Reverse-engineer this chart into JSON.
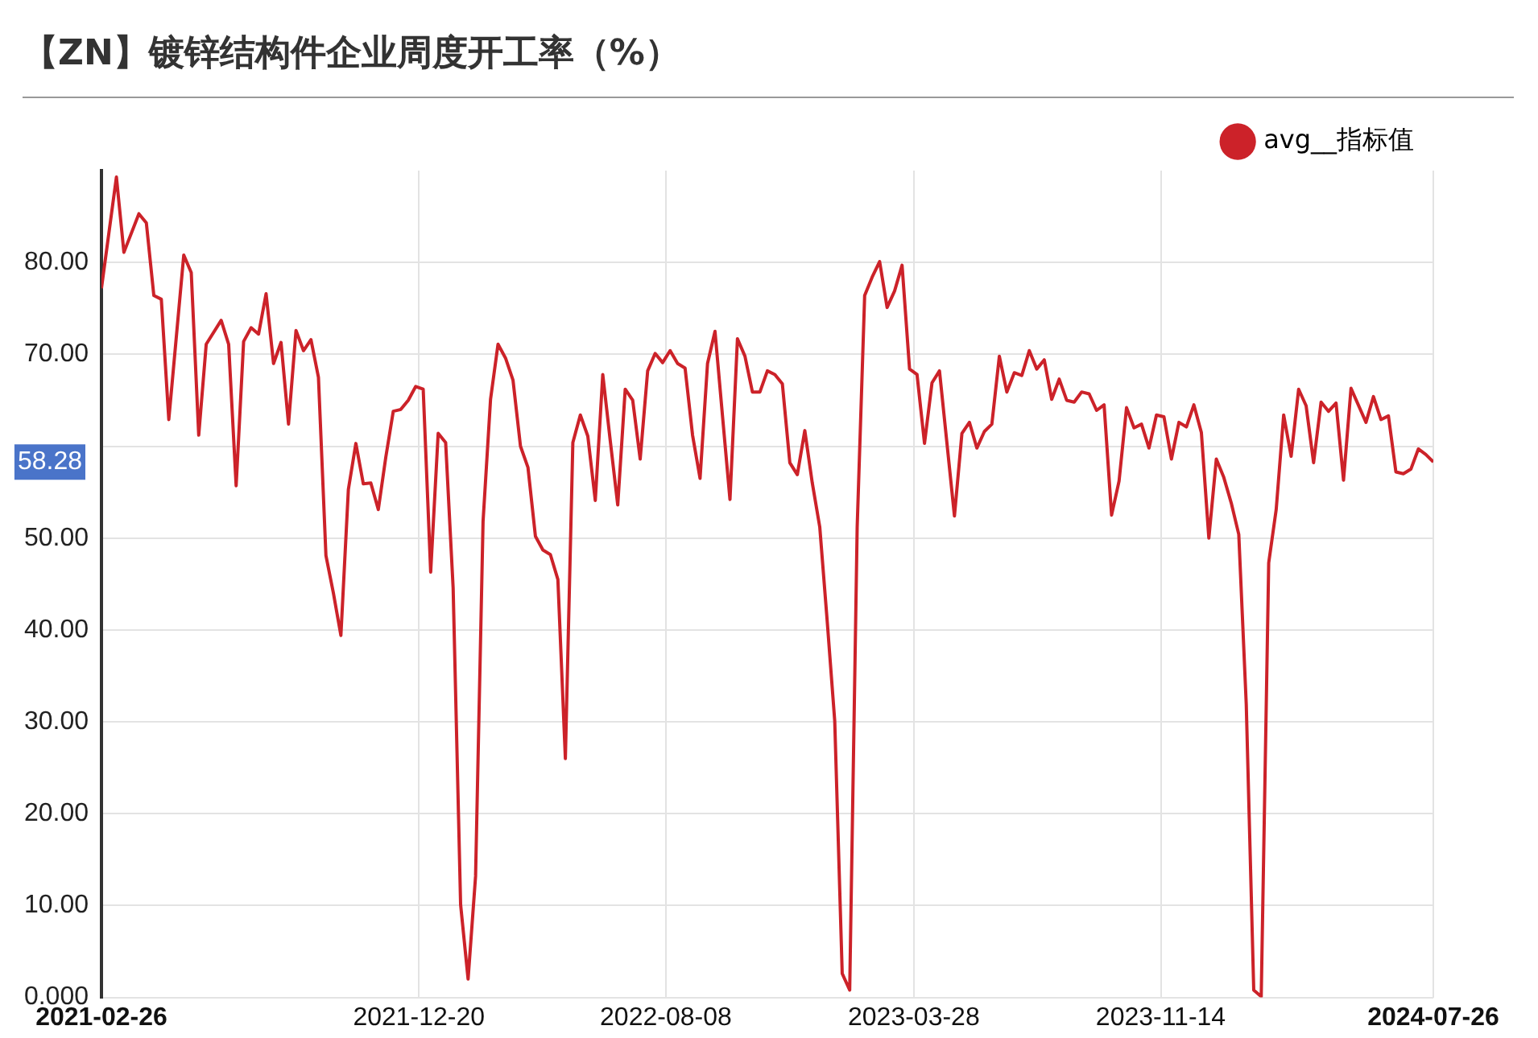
{
  "chart_data": {
    "type": "line",
    "title": "【ZN】镀锌结构件企业周度开工率（%）",
    "x": [
      "2021-02-26",
      "2021-03-12",
      "2021-03-19",
      "2021-04-02",
      "2021-04-09",
      "2021-04-16",
      "2021-04-23",
      "2021-04-30",
      "2021-05-14",
      "2021-05-21",
      "2021-05-28",
      "2021-06-04",
      "2021-06-18",
      "2021-06-25",
      "2021-07-02",
      "2021-07-09",
      "2021-07-16",
      "2021-07-23",
      "2021-07-30",
      "2021-08-06",
      "2021-08-13",
      "2021-08-20",
      "2021-08-27",
      "2021-09-03",
      "2021-09-10",
      "2021-09-17",
      "2021-09-24",
      "2021-10-01",
      "2021-10-08",
      "2021-10-15",
      "2021-10-22",
      "2021-10-29",
      "2021-11-05",
      "2021-11-12",
      "2021-11-19",
      "2021-11-26",
      "2021-12-03",
      "2021-12-10",
      "2021-12-17",
      "2021-12-24",
      "2021-12-31",
      "2022-01-07",
      "2022-01-14",
      "2022-01-21",
      "2022-01-28",
      "2022-02-04",
      "2022-02-11",
      "2022-02-18",
      "2022-02-25",
      "2022-03-04",
      "2022-03-11",
      "2022-03-18",
      "2022-03-25",
      "2022-04-01",
      "2022-04-08",
      "2022-04-15",
      "2022-04-22",
      "2022-04-29",
      "2022-05-06",
      "2022-05-13",
      "2022-05-20",
      "2022-05-27",
      "2022-06-03",
      "2022-06-10",
      "2022-06-17",
      "2022-06-24",
      "2022-07-01",
      "2022-07-08",
      "2022-07-15",
      "2022-07-22",
      "2022-07-29",
      "2022-08-05",
      "2022-08-12",
      "2022-08-19",
      "2022-08-26",
      "2022-09-02",
      "2022-09-09",
      "2022-09-16",
      "2022-09-23",
      "2022-09-30",
      "2022-10-07",
      "2022-10-14",
      "2022-10-21",
      "2022-10-28",
      "2022-11-04",
      "2022-11-11",
      "2022-11-18",
      "2022-11-25",
      "2022-12-02",
      "2022-12-09",
      "2022-12-16",
      "2022-12-23",
      "2022-12-30",
      "2023-01-06",
      "2023-01-13",
      "2023-01-20",
      "2023-01-27",
      "2023-02-03",
      "2023-02-10",
      "2023-02-17",
      "2023-02-24",
      "2023-03-03",
      "2023-03-10",
      "2023-03-17",
      "2023-03-24",
      "2023-03-31",
      "2023-04-07",
      "2023-04-14",
      "2023-04-21",
      "2023-05-05",
      "2023-05-12",
      "2023-05-19",
      "2023-05-26",
      "2023-06-02",
      "2023-06-09",
      "2023-06-16",
      "2023-06-23",
      "2023-06-30",
      "2023-07-07",
      "2023-07-14",
      "2023-07-21",
      "2023-07-28",
      "2023-08-04",
      "2023-08-11",
      "2023-08-18",
      "2023-08-25",
      "2023-09-01",
      "2023-09-08",
      "2023-09-15",
      "2023-09-22",
      "2023-09-29",
      "2023-10-06",
      "2023-10-13",
      "2023-10-20",
      "2023-10-27",
      "2023-11-03",
      "2023-11-10",
      "2023-11-17",
      "2023-11-24",
      "2023-12-01",
      "2023-12-08",
      "2023-12-15",
      "2023-12-22",
      "2023-12-29",
      "2024-01-05",
      "2024-01-12",
      "2024-01-19",
      "2024-01-26",
      "2024-02-02",
      "2024-02-09",
      "2024-02-16",
      "2024-02-23",
      "2024-03-01",
      "2024-03-08",
      "2024-03-15",
      "2024-03-22",
      "2024-03-29",
      "2024-04-05",
      "2024-04-12",
      "2024-04-19",
      "2024-04-26",
      "2024-05-03",
      "2024-05-10",
      "2024-05-24",
      "2024-05-31",
      "2024-06-07",
      "2024-06-14",
      "2024-06-21",
      "2024-06-28",
      "2024-07-05",
      "2024-07-12",
      "2024-07-19",
      "2024-07-26"
    ],
    "series": [
      {
        "name": "avg__指标值",
        "color": "#cc2229",
        "values": [
          77.2,
          89.3,
          81.1,
          85.3,
          84.3,
          76.4,
          76.0,
          62.9,
          80.8,
          78.9,
          61.2,
          71.1,
          73.7,
          71.1,
          55.7,
          71.4,
          72.9,
          72.2,
          76.6,
          69.0,
          71.3,
          62.4,
          72.6,
          70.4,
          71.6,
          67.5,
          48.1,
          44.0,
          39.4,
          55.3,
          60.3,
          55.9,
          56.0,
          53.1,
          58.8,
          63.8,
          64.0,
          65.0,
          66.5,
          66.2,
          46.3,
          61.4,
          60.4,
          44.6,
          10.1,
          2.0,
          13.2,
          51.8,
          65.1,
          71.1,
          69.6,
          67.2,
          60.0,
          57.7,
          50.2,
          48.7,
          48.2,
          45.5,
          26.0,
          60.4,
          63.4,
          61.1,
          54.1,
          67.8,
          60.6,
          53.6,
          66.2,
          65.0,
          58.6,
          68.2,
          70.1,
          69.1,
          70.4,
          69.0,
          68.5,
          61.2,
          56.5,
          69.0,
          72.5,
          63.3,
          54.2,
          71.7,
          69.8,
          65.9,
          65.9,
          68.2,
          67.8,
          66.8,
          58.2,
          56.9,
          61.7,
          56.0,
          51.2,
          40.9,
          30.1,
          2.6,
          0.8,
          51.2,
          76.4,
          78.4,
          80.1,
          75.1,
          76.9,
          79.7,
          68.4,
          67.8,
          60.3,
          66.9,
          68.2,
          52.4,
          61.4,
          62.6,
          59.8,
          61.6,
          62.4,
          69.8,
          65.9,
          68.0,
          67.7,
          70.4,
          68.4,
          69.4,
          65.1,
          67.3,
          65.0,
          64.8,
          65.9,
          65.7,
          63.9,
          64.5,
          52.5,
          56.2,
          64.2,
          62.0,
          62.4,
          59.8,
          63.4,
          63.2,
          58.6,
          62.6,
          62.1,
          64.5,
          61.5,
          50.0,
          58.6,
          56.6,
          53.8,
          50.4,
          31.9,
          0.8,
          0.1,
          47.3,
          53.1,
          63.4,
          58.9,
          66.2,
          64.4,
          58.2,
          64.8,
          63.8,
          64.7,
          56.3,
          66.3,
          62.6,
          65.4,
          62.9,
          63.3,
          57.2,
          57.0,
          57.5,
          59.7,
          59.1,
          58.28
        ]
      }
    ],
    "xlim": [
      "2021-02-26",
      "2024-07-26"
    ],
    "xticks": [
      "2021-02-26",
      "2021-12-20",
      "2022-08-08",
      "2023-03-28",
      "2023-11-14",
      "2024-07-26"
    ],
    "ylim": [
      0,
      90
    ],
    "yticks": [
      {
        "value": 0,
        "label": "0.000"
      },
      {
        "value": 10,
        "label": "10.00"
      },
      {
        "value": 20,
        "label": "20.00"
      },
      {
        "value": 30,
        "label": "30.00"
      },
      {
        "value": 40,
        "label": "40.00"
      },
      {
        "value": 50,
        "label": "50.00"
      },
      {
        "value": 60,
        "label": null
      },
      {
        "value": 70,
        "label": "70.00"
      },
      {
        "value": 80,
        "label": "80.00"
      }
    ],
    "annotations": [
      "58.28"
    ],
    "grid": true,
    "legend": "top right",
    "marker": "none",
    "line_style": "solid"
  }
}
